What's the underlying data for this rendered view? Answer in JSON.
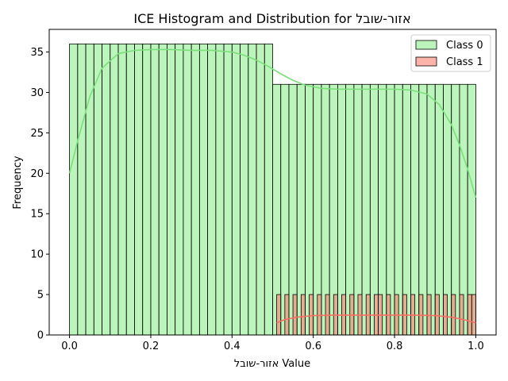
{
  "chart_data": {
    "type": "histogram",
    "title": "ICE Histogram and Distribution for אזור-שובל",
    "xlabel": "אזור-שובל Value",
    "ylabel": "Frequency",
    "xlim": [
      -0.05,
      1.05
    ],
    "ylim": [
      0,
      37.8
    ],
    "xticks": [
      0.0,
      0.2,
      0.4,
      0.6,
      0.8,
      1.0
    ],
    "xtick_labels": [
      "0.0",
      "0.2",
      "0.4",
      "0.6",
      "0.8",
      "1.0"
    ],
    "yticks": [
      0,
      5,
      10,
      15,
      20,
      25,
      30,
      35
    ],
    "ytick_labels": [
      "0",
      "5",
      "10",
      "15",
      "20",
      "25",
      "30",
      "35"
    ],
    "grid": false,
    "legend_position": "top-right",
    "series": [
      {
        "name": "Class 0",
        "fill_color": "#90ee90",
        "line_color": "#79e079",
        "bins": {
          "start": 0.0,
          "end": 1.0,
          "count": 50
        },
        "counts": [
          36,
          36,
          36,
          36,
          36,
          36,
          36,
          36,
          36,
          36,
          36,
          36,
          36,
          36,
          36,
          36,
          36,
          36,
          36,
          36,
          36,
          36,
          36,
          36,
          36,
          31,
          31,
          31,
          31,
          31,
          31,
          31,
          31,
          31,
          31,
          31,
          31,
          31,
          31,
          31,
          31,
          31,
          31,
          31,
          31,
          31,
          31,
          31,
          31,
          31
        ],
        "kde": {
          "x": [
            0.0,
            0.02,
            0.05,
            0.08,
            0.12,
            0.16,
            0.2,
            0.25,
            0.3,
            0.35,
            0.4,
            0.43,
            0.46,
            0.49,
            0.52,
            0.55,
            0.58,
            0.62,
            0.66,
            0.7,
            0.75,
            0.8,
            0.84,
            0.88,
            0.91,
            0.94,
            0.96,
            0.98,
            1.0
          ],
          "y": [
            20.0,
            24.0,
            29.5,
            33.0,
            34.8,
            35.2,
            35.3,
            35.3,
            35.2,
            35.2,
            35.0,
            34.6,
            34.0,
            33.2,
            32.3,
            31.5,
            30.9,
            30.5,
            30.4,
            30.4,
            30.4,
            30.4,
            30.3,
            29.8,
            28.5,
            26.0,
            23.5,
            20.5,
            17.0
          ]
        }
      },
      {
        "name": "Class 1",
        "fill_color": "#fa8072",
        "line_color": "#f86f62",
        "bins": {
          "start": 0.51,
          "end": 1.0,
          "count": 49
        },
        "counts": [
          5,
          0,
          5,
          0,
          5,
          0,
          5,
          0,
          5,
          0,
          5,
          0,
          5,
          0,
          5,
          0,
          5,
          0,
          5,
          0,
          5,
          0,
          5,
          0,
          5,
          5,
          0,
          5,
          0,
          5,
          0,
          5,
          0,
          5,
          0,
          5,
          0,
          5,
          0,
          5,
          0,
          5,
          0,
          5,
          0,
          5,
          0,
          5,
          5
        ],
        "kde": {
          "x": [
            0.51,
            0.53,
            0.56,
            0.6,
            0.65,
            0.7,
            0.75,
            0.8,
            0.85,
            0.9,
            0.94,
            0.97,
            1.0
          ],
          "y": [
            1.5,
            1.9,
            2.2,
            2.4,
            2.45,
            2.45,
            2.45,
            2.45,
            2.45,
            2.4,
            2.2,
            1.9,
            1.5
          ]
        }
      }
    ]
  }
}
